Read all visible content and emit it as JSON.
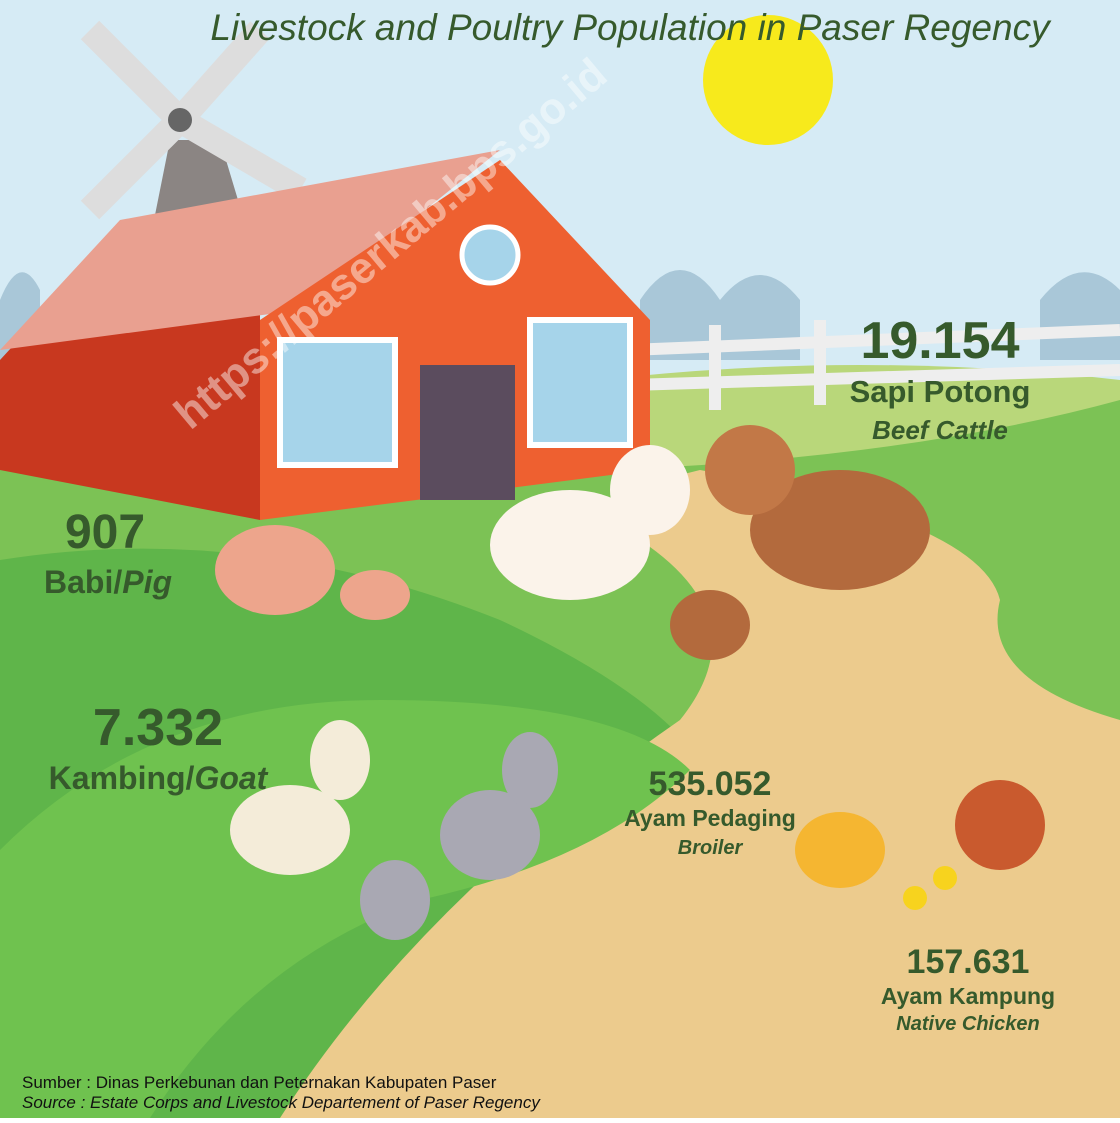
{
  "title": "Livestock and Poultry Population in Paser Regency",
  "watermark": "https://paserkab.bps.go.id",
  "items": [
    {
      "value": "19.154",
      "name": "Sapi Potong",
      "name_en": "Beef Cattle"
    },
    {
      "value": "907",
      "name": "Babi/",
      "name_en": "Pig"
    },
    {
      "value": "7.332",
      "name": "Kambing/",
      "name_en": "Goat"
    },
    {
      "value": "535.052",
      "name": "Ayam Pedaging",
      "name_en": "Broiler"
    },
    {
      "value": "157.631",
      "name": "Ayam Kampung",
      "name_en": "Native Chicken"
    }
  ],
  "source": {
    "id": "Sumber : Dinas Perkebunan dan Peternakan Kabupaten Paser",
    "en": "Source :  Estate Corps and Livestock Departement of Paser Regency"
  }
}
